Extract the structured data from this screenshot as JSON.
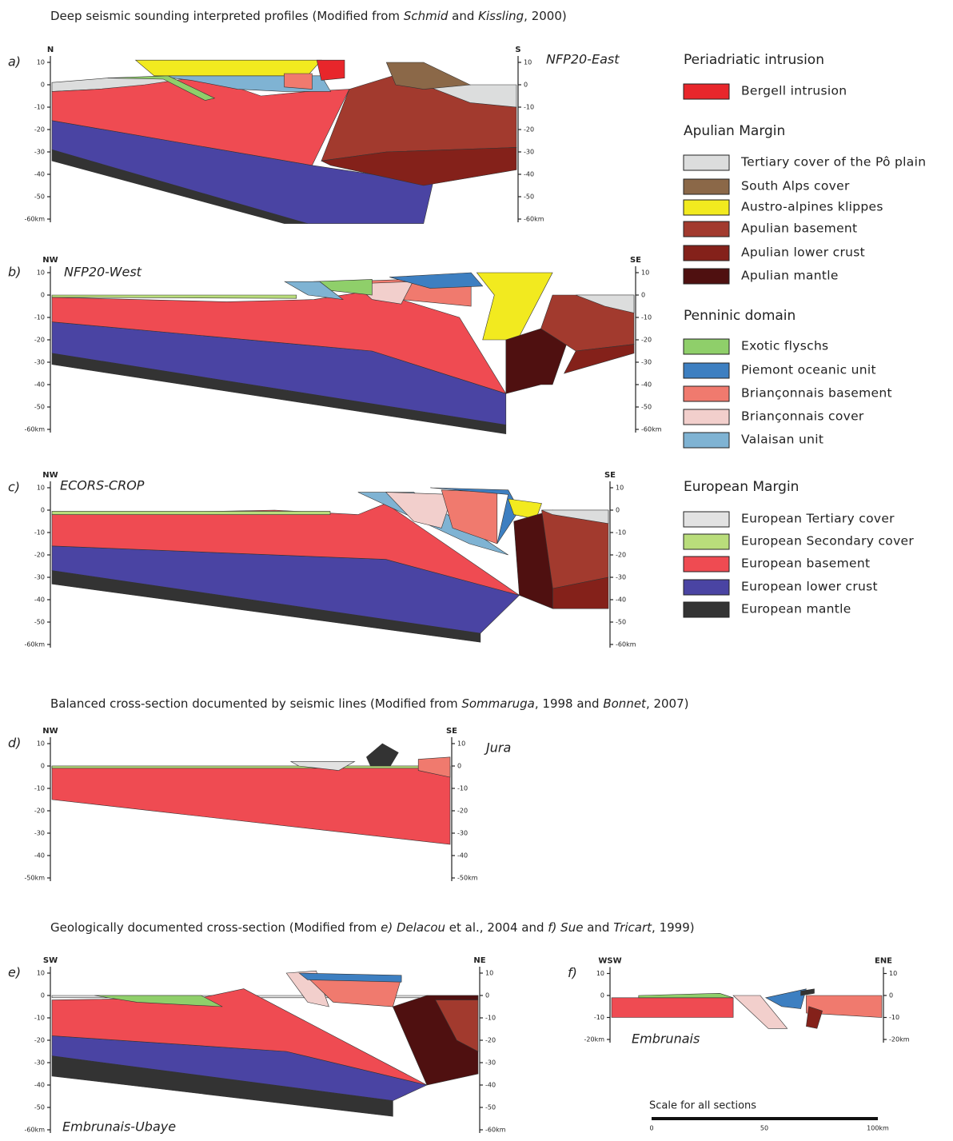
{
  "sections": [
    {
      "title": [
        "Deep seismic sounding interpreted profiles (Modified from ",
        "Schmid",
        " and ",
        "Kissling",
        ", 2000)"
      ]
    },
    {
      "title": [
        "Balanced cross-section documented by seismic lines (Modified from ",
        "Sommaruga",
        ", 1998 and ",
        "Bonnet",
        ", 2007)"
      ]
    },
    {
      "title": [
        "Geologically documented cross-section (Modified from ",
        "e) Delacou",
        " et al., 2004 and ",
        "f) Sue",
        " and ",
        "Tricart",
        ", 1999)"
      ]
    }
  ],
  "panels": [
    {
      "letter": "a)",
      "name": "NFP20-East",
      "left_dir": "N",
      "right_dir": "S",
      "left_ticks": [
        "10",
        "0",
        "-10",
        "-20",
        "-30",
        "-40",
        "-50",
        "-60km"
      ],
      "right_ticks": [
        "10",
        "0",
        "-10",
        "-20",
        "-30",
        "-40",
        "-50",
        "-60km"
      ]
    },
    {
      "letter": "b)",
      "name": "NFP20-West",
      "left_dir": "NW",
      "right_dir": "SE",
      "left_ticks": [
        "10",
        "0",
        "-10",
        "-20",
        "-30",
        "-40",
        "-50",
        "-60km"
      ],
      "right_ticks": [
        "10",
        "0",
        "-10",
        "-20",
        "-30",
        "-40",
        "-50",
        "-60km"
      ]
    },
    {
      "letter": "c)",
      "name": "ECORS-CROP",
      "left_dir": "NW",
      "right_dir": "SE",
      "left_ticks": [
        "10",
        "0",
        "-10",
        "-20",
        "-30",
        "-40",
        "-50",
        "-60km"
      ],
      "right_ticks": [
        "10",
        "0",
        "-10",
        "-20",
        "-30",
        "-40",
        "-50",
        "-60km"
      ]
    },
    {
      "letter": "d)",
      "name": "Jura",
      "left_dir": "NW",
      "right_dir": "SE",
      "left_ticks": [
        "10",
        "0",
        "-10",
        "-20",
        "-30",
        "-40",
        "-50km"
      ],
      "right_ticks": [
        "10",
        "0",
        "-10",
        "-20",
        "-30",
        "-40",
        "-50km"
      ]
    },
    {
      "letter": "e)",
      "name": "Embrunais-Ubaye",
      "left_dir": "SW",
      "right_dir": "NE",
      "left_ticks": [
        "10",
        "0",
        "-10",
        "-20",
        "-30",
        "-40",
        "-50",
        "-60km"
      ],
      "right_ticks": [
        "10",
        "0",
        "-10",
        "-20",
        "-30",
        "-40",
        "-50",
        "-60km"
      ]
    },
    {
      "letter": "f)",
      "name": "Embrunais",
      "left_dir": "WSW",
      "right_dir": "ENE",
      "left_ticks": [
        "10",
        "0",
        "-10",
        "-20km"
      ],
      "right_ticks": [
        "10",
        "0",
        "-10",
        "-20km"
      ]
    }
  ],
  "legend": [
    {
      "heading": "Periadriatic intrusion",
      "items": [
        "Bergell intrusion"
      ]
    },
    {
      "heading": "Apulian Margin",
      "items": [
        "Tertiary cover of the Pô plain",
        "South Alps cover",
        "Austro-alpines klippes",
        "Apulian basement",
        "Apulian lower crust",
        "Apulian mantle"
      ]
    },
    {
      "heading": "Penninic domain",
      "items": [
        "Exotic flyschs",
        "Piemont oceanic unit",
        "Briançonnais basement",
        "Briançonnais cover",
        "Valaisan unit"
      ]
    },
    {
      "heading": "European Margin",
      "items": [
        "European Tertiary cover",
        "European Secondary cover",
        "European basement",
        "European lower crust",
        "European mantle"
      ]
    }
  ],
  "scale": {
    "title": "Scale for all sections",
    "labels": [
      "0",
      "50",
      "100km"
    ]
  }
}
